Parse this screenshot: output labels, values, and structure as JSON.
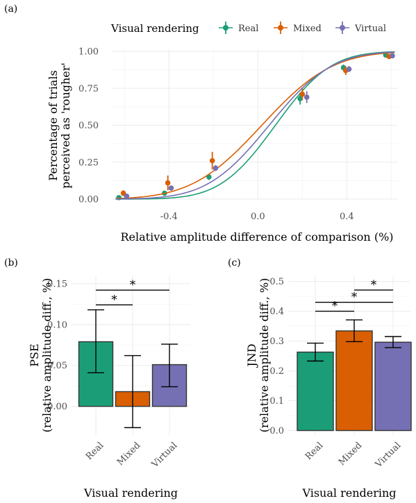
{
  "colors": {
    "Real": "#1b9e77",
    "Mixed": "#d95f02",
    "Virtual": "#7570b3"
  },
  "legend": {
    "title": "Visual rendering",
    "items": [
      "Real",
      "Mixed",
      "Virtual"
    ]
  },
  "chart_data": [
    {
      "panel": "(a)",
      "type": "line",
      "xlabel": "Relative amplitude difference of comparison (%)",
      "ylabel": [
        "Percentage of trials",
        "perceived as 'rougher'"
      ],
      "xlim": [
        -0.66,
        0.63
      ],
      "ylim": [
        0,
        1
      ],
      "xticks": [
        "-0.4",
        "0.0",
        "0.4"
      ],
      "xtick_values": [
        -0.4,
        0.0,
        0.4
      ],
      "yticks": [
        "0.00",
        "0.25",
        "0.50",
        "0.75",
        "1.00"
      ],
      "ytick_values": [
        0,
        0.25,
        0.5,
        0.75,
        1.0
      ],
      "grid": true,
      "legend_position": "top",
      "series": [
        {
          "name": "Real",
          "curve": {
            "mu": 0.079,
            "sigma": 0.195
          },
          "points": [
            {
              "x": -0.625,
              "y": 0.01,
              "ylo": 0.005,
              "yhi": 0.015
            },
            {
              "x": -0.42,
              "y": 0.04,
              "ylo": 0.03,
              "yhi": 0.05
            },
            {
              "x": -0.22,
              "y": 0.15,
              "ylo": 0.13,
              "yhi": 0.17
            },
            {
              "x": 0.19,
              "y": 0.68,
              "ylo": 0.64,
              "yhi": 0.72
            },
            {
              "x": 0.385,
              "y": 0.89,
              "ylo": 0.87,
              "yhi": 0.91
            },
            {
              "x": 0.575,
              "y": 0.975,
              "ylo": 0.965,
              "yhi": 0.985
            }
          ]
        },
        {
          "name": "Mixed",
          "curve": {
            "mu": 0.018,
            "sigma": 0.248
          },
          "points": [
            {
              "x": -0.605,
              "y": 0.04,
              "ylo": 0.02,
              "yhi": 0.06
            },
            {
              "x": -0.405,
              "y": 0.11,
              "ylo": 0.06,
              "yhi": 0.16
            },
            {
              "x": -0.205,
              "y": 0.26,
              "ylo": 0.2,
              "yhi": 0.32
            },
            {
              "x": 0.2,
              "y": 0.71,
              "ylo": 0.67,
              "yhi": 0.75
            },
            {
              "x": 0.395,
              "y": 0.87,
              "ylo": 0.84,
              "yhi": 0.9
            },
            {
              "x": 0.59,
              "y": 0.965,
              "ylo": 0.95,
              "yhi": 0.98
            }
          ]
        },
        {
          "name": "Virtual",
          "curve": {
            "mu": 0.051,
            "sigma": 0.219
          },
          "points": [
            {
              "x": -0.59,
              "y": 0.02,
              "ylo": 0.01,
              "yhi": 0.03
            },
            {
              "x": -0.39,
              "y": 0.075,
              "ylo": 0.06,
              "yhi": 0.09
            },
            {
              "x": -0.19,
              "y": 0.21,
              "ylo": 0.19,
              "yhi": 0.23
            },
            {
              "x": 0.22,
              "y": 0.69,
              "ylo": 0.65,
              "yhi": 0.73
            },
            {
              "x": 0.41,
              "y": 0.88,
              "ylo": 0.86,
              "yhi": 0.9
            },
            {
              "x": 0.605,
              "y": 0.97,
              "ylo": 0.96,
              "yhi": 0.98
            }
          ]
        }
      ]
    },
    {
      "panel": "(b)",
      "type": "bar",
      "xlabel": "Visual rendering",
      "ylabel": [
        "PSE",
        "(relative amplitude diff., %)"
      ],
      "categories": [
        "Real",
        "Mixed",
        "Virtual"
      ],
      "values": [
        0.079,
        0.018,
        0.051
      ],
      "error_low": [
        0.041,
        -0.026,
        0.024
      ],
      "error_high": [
        0.118,
        0.062,
        0.076
      ],
      "ylim": [
        -0.035,
        0.16
      ],
      "yticks": [
        "0.00",
        "0.05",
        "0.10",
        "0.15"
      ],
      "ytick_values": [
        0,
        0.05,
        0.1,
        0.15
      ],
      "grid": true,
      "significance": [
        {
          "from": 0,
          "to": 1,
          "y": 0.124,
          "label": "*"
        },
        {
          "from": 0,
          "to": 2,
          "y": 0.142,
          "label": "*"
        }
      ]
    },
    {
      "panel": "(c)",
      "type": "bar",
      "xlabel": "Visual rendering",
      "ylabel": [
        "JND",
        "(relative amplitude diff., %)"
      ],
      "categories": [
        "Real",
        "Mixed",
        "Virtual"
      ],
      "values": [
        0.263,
        0.334,
        0.296
      ],
      "error_low": [
        0.233,
        0.298,
        0.278
      ],
      "error_high": [
        0.293,
        0.371,
        0.315
      ],
      "ylim": [
        -0.015,
        0.52
      ],
      "yticks": [
        "0.0",
        "0.1",
        "0.2",
        "0.3",
        "0.4",
        "0.5"
      ],
      "ytick_values": [
        0,
        0.1,
        0.2,
        0.3,
        0.4,
        0.5
      ],
      "grid": true,
      "significance": [
        {
          "from": 0,
          "to": 1,
          "y": 0.4,
          "label": "*"
        },
        {
          "from": 0,
          "to": 2,
          "y": 0.43,
          "label": "*"
        },
        {
          "from": 1,
          "to": 2,
          "y": 0.471,
          "label": "*"
        }
      ]
    }
  ]
}
